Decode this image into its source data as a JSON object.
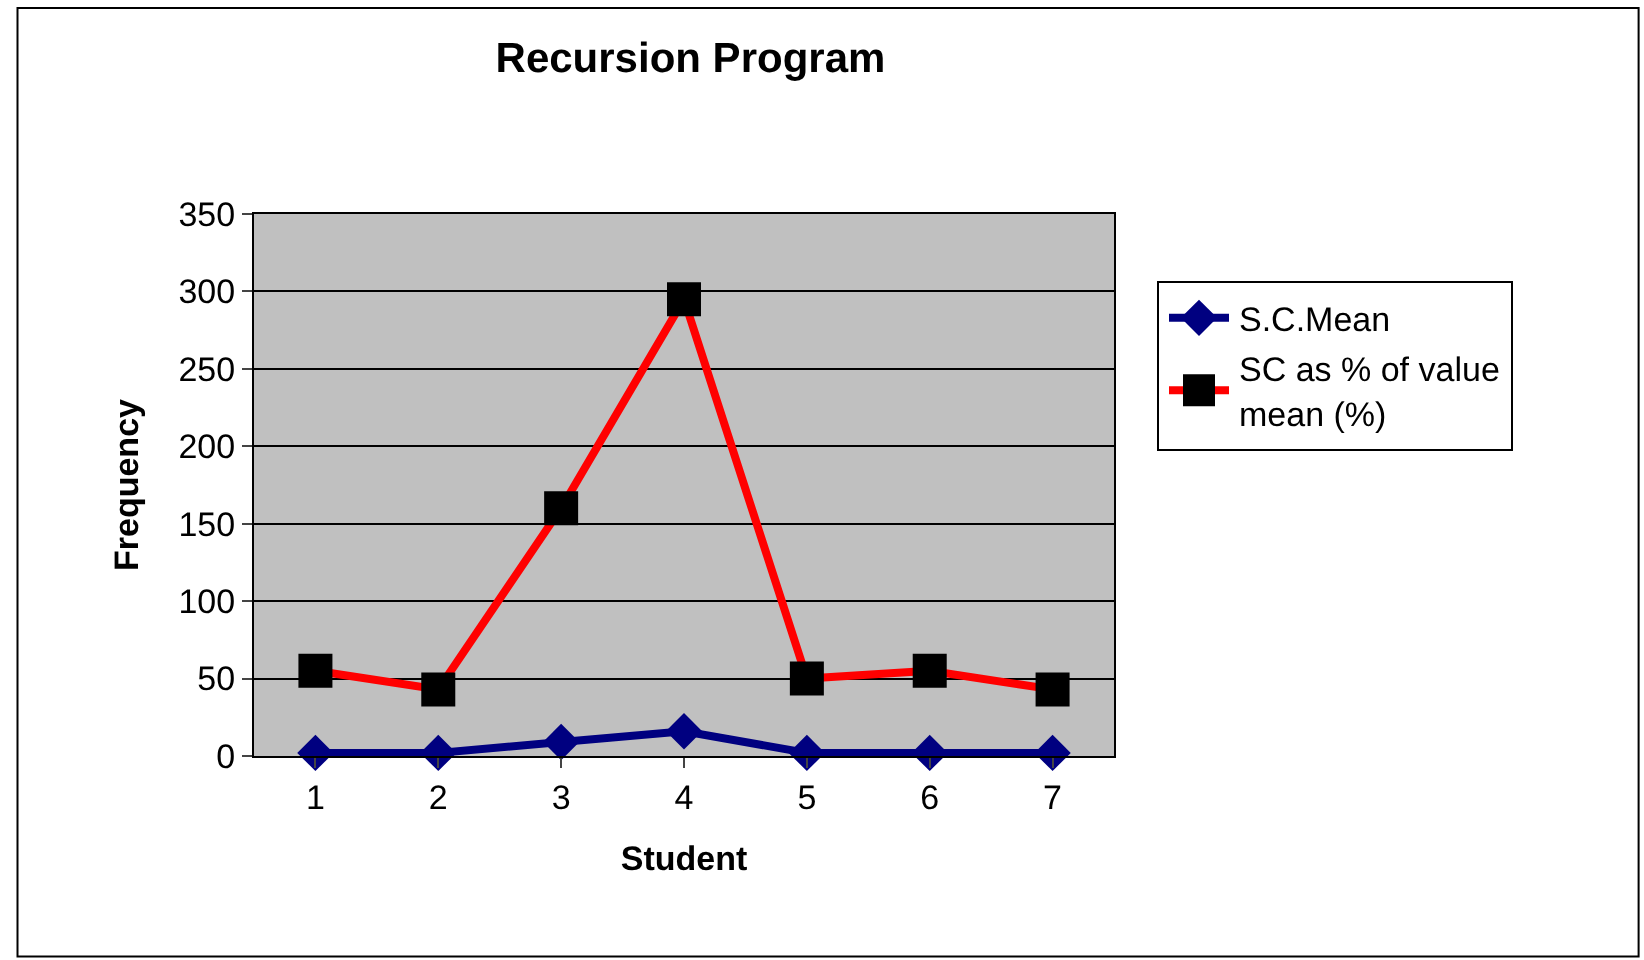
{
  "chart_data": {
    "type": "line",
    "title": "Recursion Program",
    "xlabel": "Student",
    "ylabel": "Frequency",
    "categories": [
      "1",
      "2",
      "3",
      "4",
      "5",
      "6",
      "7"
    ],
    "series": [
      {
        "name": "S.C.Mean",
        "color": "#000080",
        "marker": "diamond",
        "values": [
          2,
          2,
          9,
          16,
          2,
          2,
          2
        ]
      },
      {
        "name": "SC as % of value mean (%)",
        "color": "#ff0000",
        "marker": "square",
        "values": [
          55,
          43,
          160,
          295,
          50,
          55,
          43
        ]
      }
    ],
    "ylim": [
      0,
      350
    ],
    "yticks": [
      0,
      50,
      100,
      150,
      200,
      250,
      300,
      350
    ],
    "grid": "y",
    "legend": "right"
  }
}
